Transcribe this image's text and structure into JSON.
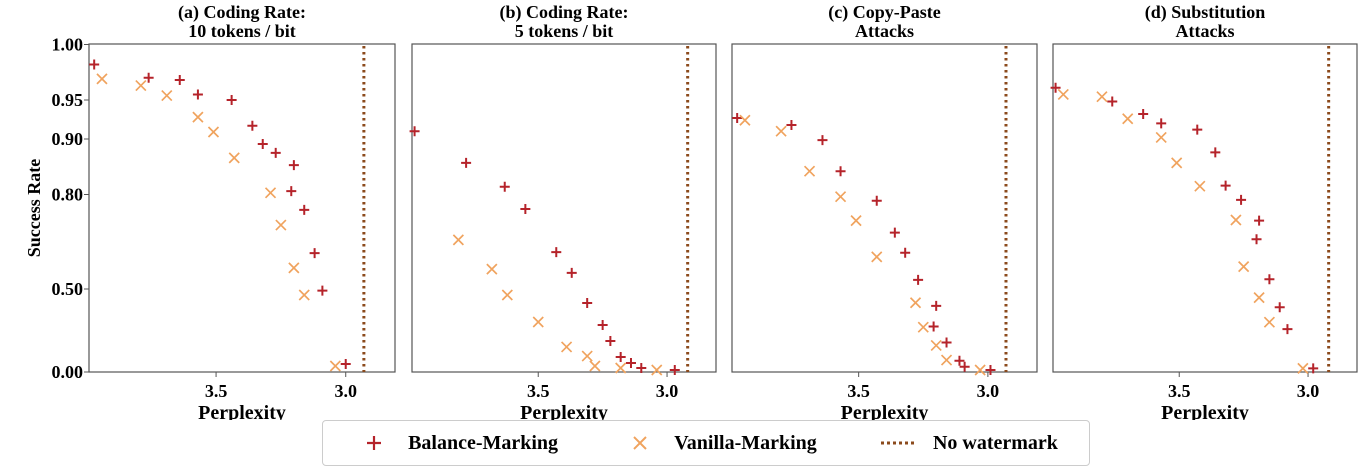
{
  "chart_data": [
    {
      "type": "scatter",
      "title": "(a) Coding Rate:\n10 tokens / bit",
      "title_lines": [
        "(a) Coding Rate:",
        "10 tokens / bit"
      ],
      "xlabel": "Perplexity",
      "ylabel": "Success Rate",
      "xlim": [
        3.99,
        2.81
      ],
      "x_inverted": true,
      "xticks": [
        "3.5",
        "3.0"
      ],
      "yticks": [
        "0.00",
        "0.50",
        "0.80",
        "0.90",
        "0.95",
        "1.00"
      ],
      "ylim": [
        0,
        1
      ],
      "no_watermark_x": 2.93,
      "series": [
        {
          "name": "Balance-Marking",
          "marker": "+",
          "points": [
            [
              3.97,
              0.982
            ],
            [
              3.76,
              0.97
            ],
            [
              3.64,
              0.968
            ],
            [
              3.57,
              0.955
            ],
            [
              3.44,
              0.95
            ],
            [
              3.36,
              0.917
            ],
            [
              3.32,
              0.891
            ],
            [
              3.27,
              0.875
            ],
            [
              3.2,
              0.853
            ],
            [
              3.21,
              0.806
            ],
            [
              3.16,
              0.751
            ],
            [
              3.12,
              0.614
            ],
            [
              3.09,
              0.49
            ],
            [
              3.0,
              0.048
            ]
          ]
        },
        {
          "name": "Vanilla-Marking",
          "marker": "x",
          "points": [
            [
              3.94,
              0.969
            ],
            [
              3.79,
              0.963
            ],
            [
              3.69,
              0.954
            ],
            [
              3.57,
              0.928
            ],
            [
              3.51,
              0.909
            ],
            [
              3.43,
              0.866
            ],
            [
              3.29,
              0.803
            ],
            [
              3.25,
              0.703
            ],
            [
              3.2,
              0.567
            ],
            [
              3.16,
              0.464
            ],
            [
              3.04,
              0.036
            ]
          ]
        }
      ]
    },
    {
      "type": "scatter",
      "title_lines": [
        "(b) Coding Rate:",
        "5 tokens / bit"
      ],
      "xlabel": "Perplexity",
      "xlim": [
        3.99,
        2.81
      ],
      "x_inverted": true,
      "xticks": [
        "3.5",
        "3.0"
      ],
      "ylim": [
        0,
        1
      ],
      "no_watermark_x": 2.92,
      "series": [
        {
          "name": "Balance-Marking",
          "marker": "+",
          "points": [
            [
              3.98,
              0.91
            ],
            [
              3.78,
              0.857
            ],
            [
              3.63,
              0.814
            ],
            [
              3.55,
              0.754
            ],
            [
              3.43,
              0.617
            ],
            [
              3.37,
              0.551
            ],
            [
              3.31,
              0.416
            ],
            [
              3.25,
              0.283
            ],
            [
              3.22,
              0.187
            ],
            [
              3.18,
              0.09
            ],
            [
              3.14,
              0.054
            ],
            [
              3.1,
              0.024
            ],
            [
              2.97,
              0.012
            ]
          ]
        },
        {
          "name": "Vanilla-Marking",
          "marker": "x",
          "points": [
            [
              3.81,
              0.656
            ],
            [
              3.68,
              0.563
            ],
            [
              3.62,
              0.464
            ],
            [
              3.5,
              0.301
            ],
            [
              3.39,
              0.151
            ],
            [
              3.31,
              0.096
            ],
            [
              3.28,
              0.036
            ],
            [
              3.18,
              0.024
            ],
            [
              3.04,
              0.012
            ]
          ]
        }
      ]
    },
    {
      "type": "scatter",
      "title_lines": [
        "(c) Copy-Paste",
        "Attacks"
      ],
      "xlabel": "Perplexity",
      "xlim": [
        3.99,
        2.81
      ],
      "x_inverted": true,
      "xticks": [
        "3.5",
        "3.0"
      ],
      "ylim": [
        0,
        1
      ],
      "no_watermark_x": 2.93,
      "series": [
        {
          "name": "Balance-Marking",
          "marker": "+",
          "points": [
            [
              3.97,
              0.927
            ],
            [
              3.76,
              0.918
            ],
            [
              3.64,
              0.898
            ],
            [
              3.57,
              0.842
            ],
            [
              3.43,
              0.78
            ],
            [
              3.36,
              0.679
            ],
            [
              3.32,
              0.615
            ],
            [
              3.27,
              0.529
            ],
            [
              3.2,
              0.398
            ],
            [
              3.21,
              0.274
            ],
            [
              3.16,
              0.178
            ],
            [
              3.11,
              0.068
            ],
            [
              3.09,
              0.032
            ],
            [
              2.99,
              0.012
            ]
          ]
        },
        {
          "name": "Vanilla-Marking",
          "marker": "x",
          "points": [
            [
              3.94,
              0.924
            ],
            [
              3.8,
              0.91
            ],
            [
              3.69,
              0.842
            ],
            [
              3.57,
              0.793
            ],
            [
              3.51,
              0.717
            ],
            [
              3.43,
              0.602
            ],
            [
              3.28,
              0.417
            ],
            [
              3.25,
              0.27
            ],
            [
              3.2,
              0.16
            ],
            [
              3.16,
              0.072
            ],
            [
              3.03,
              0.012
            ]
          ]
        }
      ]
    },
    {
      "type": "scatter",
      "title_lines": [
        "(d) Substitution",
        "Attacks"
      ],
      "xlabel": "Perplexity",
      "xlim": [
        3.99,
        2.81
      ],
      "x_inverted": true,
      "xticks": [
        "3.5",
        "3.0"
      ],
      "ylim": [
        0,
        1
      ],
      "no_watermark_x": 2.92,
      "series": [
        {
          "name": "Balance-Marking",
          "marker": "+",
          "points": [
            [
              3.98,
              0.961
            ],
            [
              3.76,
              0.948
            ],
            [
              3.64,
              0.932
            ],
            [
              3.57,
              0.92
            ],
            [
              3.43,
              0.912
            ],
            [
              3.36,
              0.876
            ],
            [
              3.32,
              0.816
            ],
            [
              3.26,
              0.783
            ],
            [
              3.19,
              0.717
            ],
            [
              3.2,
              0.658
            ],
            [
              3.15,
              0.531
            ],
            [
              3.11,
              0.39
            ],
            [
              3.08,
              0.258
            ],
            [
              2.98,
              0.022
            ]
          ]
        },
        {
          "name": "Vanilla-Marking",
          "marker": "x",
          "points": [
            [
              3.95,
              0.955
            ],
            [
              3.8,
              0.953
            ],
            [
              3.7,
              0.926
            ],
            [
              3.57,
              0.902
            ],
            [
              3.51,
              0.857
            ],
            [
              3.42,
              0.815
            ],
            [
              3.28,
              0.719
            ],
            [
              3.25,
              0.571
            ],
            [
              3.19,
              0.448
            ],
            [
              3.15,
              0.3
            ],
            [
              3.02,
              0.022
            ]
          ]
        }
      ]
    }
  ],
  "legend": {
    "placement": "bottom-center",
    "items": [
      {
        "label": "Balance-Marking",
        "marker": "+"
      },
      {
        "label": "Vanilla-Marking",
        "marker": "x"
      },
      {
        "label": "No watermark",
        "marker": "dotted-line"
      }
    ]
  },
  "colors": {
    "balance": "#b5232a",
    "vanilla": "#f0a35e",
    "no_watermark": "#8b4a1c"
  }
}
